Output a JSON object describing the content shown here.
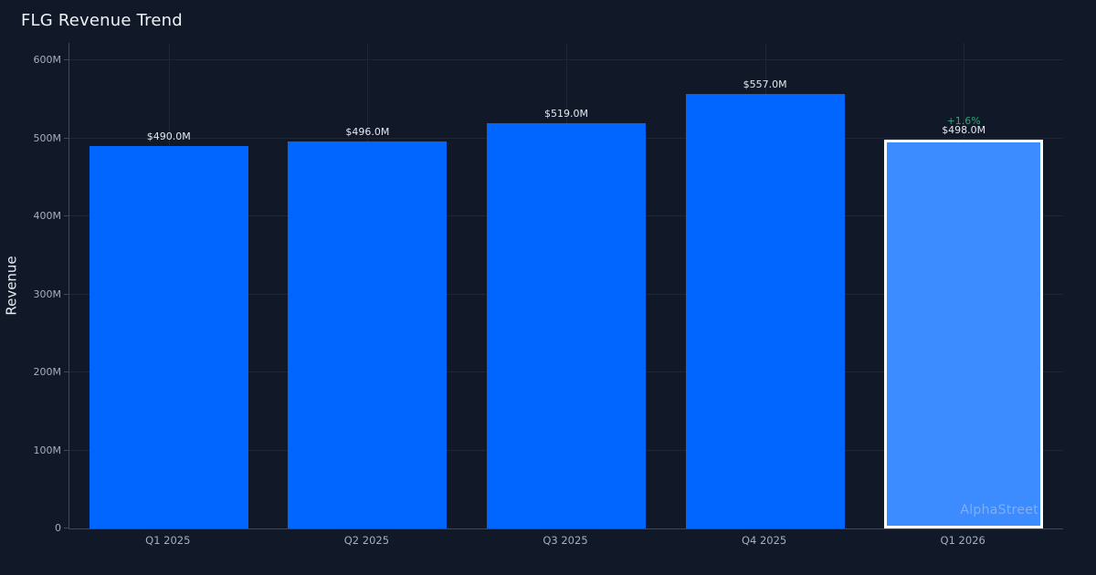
{
  "header": {
    "title": "FLG Revenue Trend"
  },
  "chart_data": {
    "type": "bar",
    "title": "FLG Revenue Trend",
    "xlabel": "",
    "ylabel": "Revenue",
    "categories": [
      "Q1 2025",
      "Q2 2025",
      "Q3 2025",
      "Q4 2025",
      "Q1 2026"
    ],
    "values": [
      490,
      496,
      519,
      557,
      498
    ],
    "value_unit": "USD millions",
    "bar_labels": [
      "$490.0M",
      "$496.0M",
      "$519.0M",
      "$557.0M",
      "$498.0M"
    ],
    "ylim_millions": [
      0,
      600
    ],
    "ytick_step_millions": 100,
    "ytick_labels": [
      "0",
      "100M",
      "200M",
      "300M",
      "400M",
      "500M",
      "600M"
    ],
    "grid": true,
    "legend": "none",
    "bar_color": "#0066ff",
    "background_color": "#111827",
    "gridline_color": "#1e2738",
    "axis_line_color": "#3e4a5b",
    "highlight": {
      "index": 4,
      "category": "Q1 2026",
      "value_label": "$498.0M",
      "change_label": "+1.6%",
      "change_color": "#2aa878",
      "fill": "#3d8cff",
      "border_color": "#ffffff"
    },
    "watermark": "AlphaStreet"
  }
}
